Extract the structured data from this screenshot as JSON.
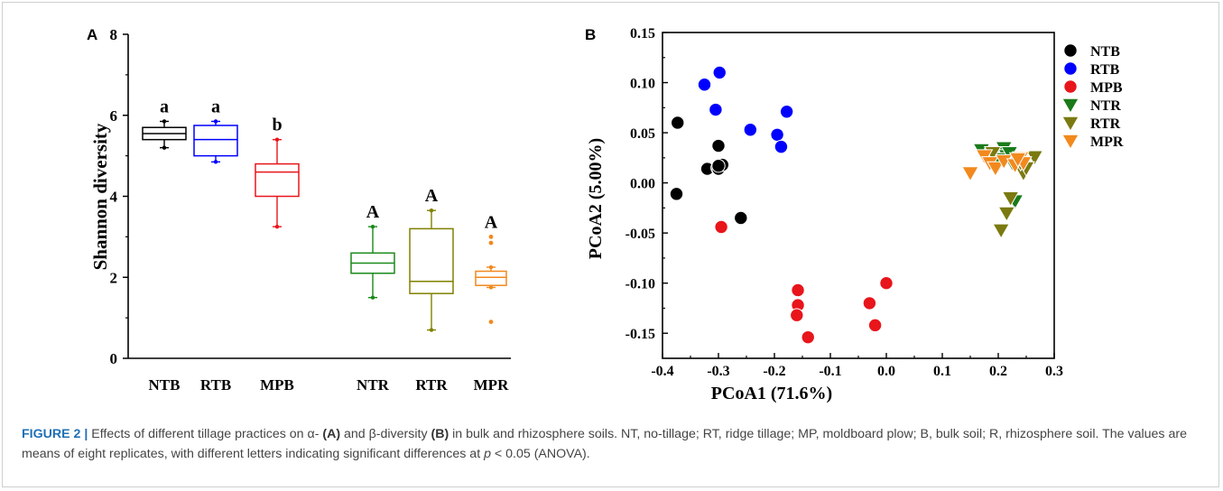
{
  "chart_data": [
    {
      "panel": "A",
      "type": "box",
      "ylabel": "Shannon diversity",
      "ylim": [
        0,
        8
      ],
      "yticks": [
        "0",
        "2",
        "4",
        "6",
        "8"
      ],
      "categories": [
        "NTB",
        "RTB",
        "MPB",
        "NTR",
        "RTR",
        "MPR"
      ],
      "colors": [
        "#000000",
        "#0000ff",
        "#e8151b",
        "#1a8a1a",
        "#808000",
        "#f2891d"
      ],
      "boxes": [
        {
          "name": "NTB",
          "min": 5.2,
          "q1": 5.4,
          "median": 5.55,
          "q3": 5.7,
          "max": 5.85,
          "outliers": [],
          "letter": "a"
        },
        {
          "name": "RTB",
          "min": 4.85,
          "q1": 5.0,
          "median": 5.4,
          "q3": 5.75,
          "max": 5.85,
          "outliers": [],
          "letter": "a"
        },
        {
          "name": "MPB",
          "min": 3.25,
          "q1": 4.0,
          "median": 4.6,
          "q3": 4.8,
          "max": 5.4,
          "outliers": [],
          "letter": "b"
        },
        {
          "name": "NTR",
          "min": 1.5,
          "q1": 2.1,
          "median": 2.35,
          "q3": 2.6,
          "max": 3.25,
          "outliers": [],
          "letter": "A"
        },
        {
          "name": "RTR",
          "min": 0.7,
          "q1": 1.6,
          "median": 1.9,
          "q3": 3.2,
          "max": 3.65,
          "outliers": [],
          "letter": "A"
        },
        {
          "name": "MPR",
          "min": 1.75,
          "q1": 1.8,
          "median": 2.0,
          "q3": 2.15,
          "max": 2.25,
          "outliers": [
            0.9,
            2.85,
            3.0
          ],
          "letter": "A"
        }
      ]
    },
    {
      "panel": "B",
      "type": "scatter",
      "xlabel": "PCoA1 (71.6%)",
      "ylabel": "PCoA2 (5.00%)",
      "xlim": [
        -0.4,
        0.3
      ],
      "ylim": [
        -0.175,
        0.15
      ],
      "xticks": [
        "-0.4",
        "-0.3",
        "-0.2",
        "-0.1",
        "0.0",
        "0.1",
        "0.2",
        "0.3"
      ],
      "yticks": [
        "0.15",
        "0.10",
        "0.05",
        "0.00",
        "-0.05",
        "-0.10",
        "-0.15"
      ],
      "legend_position": "top-right",
      "series": [
        {
          "name": "NTB",
          "marker": "circle",
          "color": "#000000",
          "x": [
            -0.373,
            -0.375,
            -0.3,
            -0.32,
            -0.302,
            -0.3,
            -0.293,
            -0.26,
            -0.3
          ],
          "y": [
            0.06,
            -0.011,
            0.037,
            0.014,
            0.015,
            0.014,
            0.018,
            -0.035,
            0.017
          ]
        },
        {
          "name": "RTB",
          "marker": "circle",
          "color": "#0000ff",
          "x": [
            -0.325,
            -0.298,
            -0.305,
            -0.243,
            -0.195,
            -0.178,
            -0.188
          ],
          "y": [
            0.098,
            0.11,
            0.073,
            0.053,
            0.048,
            0.071,
            0.036
          ]
        },
        {
          "name": "MPB",
          "marker": "circle",
          "color": "#e8151b",
          "x": [
            -0.295,
            -0.158,
            -0.158,
            -0.16,
            -0.14,
            -0.03,
            -0.02,
            0.0
          ],
          "y": [
            -0.044,
            -0.107,
            -0.122,
            -0.132,
            -0.154,
            -0.12,
            -0.142,
            -0.1
          ]
        },
        {
          "name": "NTR",
          "marker": "triangle-down",
          "color": "#1a7a1a",
          "x": [
            0.17,
            0.19,
            0.2,
            0.21,
            0.215,
            0.225,
            0.2,
            0.23,
            0.22
          ],
          "y": [
            0.033,
            0.028,
            0.018,
            0.035,
            0.027,
            0.02,
            0.024,
            -0.018,
            0.03
          ]
        },
        {
          "name": "RTR",
          "marker": "triangle-down",
          "color": "#7a7a10",
          "x": [
            0.205,
            0.215,
            0.222,
            0.245,
            0.24,
            0.265,
            0.25,
            0.19
          ],
          "y": [
            -0.047,
            -0.03,
            -0.015,
            0.01,
            0.02,
            0.026,
            0.015,
            0.03
          ]
        },
        {
          "name": "MPR",
          "marker": "triangle-down",
          "color": "#f2891d",
          "x": [
            0.15,
            0.175,
            0.185,
            0.195,
            0.21,
            0.23,
            0.24,
            0.245,
            0.235
          ],
          "y": [
            0.01,
            0.027,
            0.02,
            0.015,
            0.022,
            0.018,
            0.025,
            0.02,
            0.024
          ]
        }
      ]
    }
  ],
  "caption": {
    "lead": "FIGURE 2 |",
    "t1": " Effects of different tillage practices on α- ",
    "b1": "(A)",
    "t2": " and β-diversity ",
    "b2": "(B)",
    "t3": " in bulk and rhizosphere soils. NT, no-tillage; RT, ridge tillage; MP, moldboard plow; B, bulk soil; R, rhizosphere soil. The values are means of eight replicates, with different letters indicating significant differences at ",
    "p": "p",
    "t4": " < 0.05 (ANOVA)."
  }
}
